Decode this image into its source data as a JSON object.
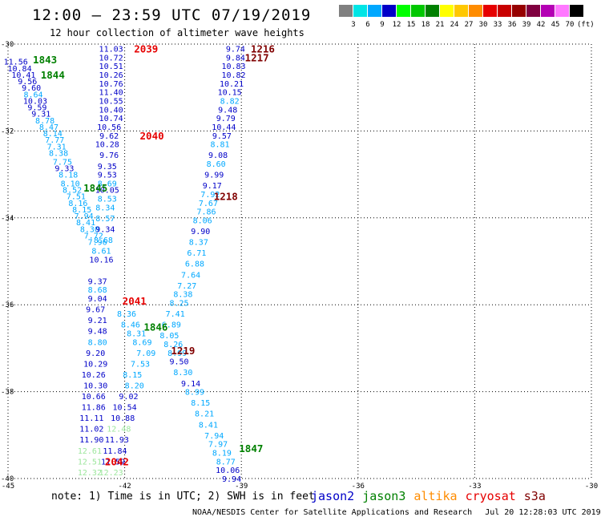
{
  "title": "12:00 – 23:59 UTC 07/19/2019",
  "subtitle": "12 hour collection of altimeter wave heights",
  "colorbar": {
    "colors": [
      "#808080",
      "#00e5e5",
      "#00a8ff",
      "#0000c8",
      "#00ff00",
      "#00c800",
      "#008000",
      "#ffff00",
      "#ffc800",
      "#ff8c00",
      "#e60000",
      "#c80000",
      "#960000",
      "#800040",
      "#b400b4",
      "#ff78ff",
      "#000000"
    ],
    "labels": [
      "3",
      "6",
      "9",
      "12",
      "15",
      "18",
      "21",
      "24",
      "27",
      "30",
      "33",
      "36",
      "39",
      "42",
      "45",
      "70",
      "(ft)"
    ]
  },
  "axes": {
    "lon_ticks": [
      "-45",
      "-42",
      "-39",
      "-36",
      "-33",
      "-30"
    ],
    "lat_ticks": [
      "-30",
      "-32",
      "-34",
      "-36",
      "-38",
      "-40"
    ]
  },
  "mission_colors": {
    "jason2": "#0000c8",
    "jason3": "#008000",
    "altika": "#ff8c00",
    "cryosat": "#e60000",
    "s3a": "#800000"
  },
  "track_colors": [
    "#0000c8",
    "#00a8ff",
    "#9ce69c"
  ],
  "observations": [
    {
      "t": "11.56",
      "lon": -44.8,
      "lat": -30.4,
      "c": 1
    },
    {
      "t": "10.84",
      "lon": -44.7,
      "lat": -30.55,
      "c": 1
    },
    {
      "t": "10.41",
      "lon": -44.6,
      "lat": -30.7,
      "c": 1
    },
    {
      "t": "9.56",
      "lon": -44.5,
      "lat": -30.85,
      "c": 1
    },
    {
      "t": "9.60",
      "lon": -44.4,
      "lat": -31.0,
      "c": 1
    },
    {
      "t": "8.64",
      "lon": -44.35,
      "lat": -31.15,
      "c": 2
    },
    {
      "t": "10.03",
      "lon": -44.3,
      "lat": -31.3,
      "c": 1
    },
    {
      "t": "9.59",
      "lon": -44.25,
      "lat": -31.45,
      "c": 1
    },
    {
      "t": "9.31",
      "lon": -44.15,
      "lat": -31.6,
      "c": 1
    },
    {
      "t": "8.78",
      "lon": -44.05,
      "lat": -31.75,
      "c": 2
    },
    {
      "t": "8.47",
      "lon": -43.95,
      "lat": -31.9,
      "c": 2
    },
    {
      "t": "8.14",
      "lon": -43.85,
      "lat": -32.05,
      "c": 2
    },
    {
      "t": "7.77",
      "lon": -43.8,
      "lat": -32.2,
      "c": 2
    },
    {
      "t": "7.31",
      "lon": -43.75,
      "lat": -32.35,
      "c": 2
    },
    {
      "t": "8.38",
      "lon": -43.7,
      "lat": -32.5,
      "c": 2
    },
    {
      "t": "7.75",
      "lon": -43.6,
      "lat": -32.7,
      "c": 2
    },
    {
      "t": "9.33",
      "lon": -43.55,
      "lat": -32.85,
      "c": 1
    },
    {
      "t": "8.18",
      "lon": -43.45,
      "lat": -33.0,
      "c": 2
    },
    {
      "t": "8.10",
      "lon": -43.4,
      "lat": -33.2,
      "c": 2
    },
    {
      "t": "8.52",
      "lon": -43.35,
      "lat": -33.35,
      "c": 2
    },
    {
      "t": "7.51",
      "lon": -43.25,
      "lat": -33.5,
      "c": 2
    },
    {
      "t": "8.16",
      "lon": -43.2,
      "lat": -33.65,
      "c": 2
    },
    {
      "t": "8.15",
      "lon": -43.1,
      "lat": -33.8,
      "c": 2
    },
    {
      "t": "7.94",
      "lon": -43.05,
      "lat": -33.95,
      "c": 2
    },
    {
      "t": "8.41",
      "lon": -43.0,
      "lat": -34.1,
      "c": 2
    },
    {
      "t": "8.30",
      "lon": -42.9,
      "lat": -34.25,
      "c": 2
    },
    {
      "t": "7.72",
      "lon": -42.8,
      "lat": -34.4,
      "c": 2
    },
    {
      "t": "7.96",
      "lon": -42.7,
      "lat": -34.55,
      "c": 2
    },
    {
      "t": "11.03",
      "lon": -42.35,
      "lat": -30.1,
      "c": 1
    },
    {
      "t": "10.72",
      "lon": -42.35,
      "lat": -30.3,
      "c": 1
    },
    {
      "t": "10.51",
      "lon": -42.35,
      "lat": -30.5,
      "c": 1
    },
    {
      "t": "10.26",
      "lon": -42.35,
      "lat": -30.7,
      "c": 1
    },
    {
      "t": "10.76",
      "lon": -42.35,
      "lat": -30.9,
      "c": 1
    },
    {
      "t": "11.40",
      "lon": -42.35,
      "lat": -31.1,
      "c": 1
    },
    {
      "t": "10.55",
      "lon": -42.35,
      "lat": -31.3,
      "c": 1
    },
    {
      "t": "10.40",
      "lon": -42.35,
      "lat": -31.5,
      "c": 1
    },
    {
      "t": "10.74",
      "lon": -42.35,
      "lat": -31.7,
      "c": 1
    },
    {
      "t": "10.56",
      "lon": -42.4,
      "lat": -31.9,
      "c": 1
    },
    {
      "t": "9.62",
      "lon": -42.4,
      "lat": -32.1,
      "c": 1
    },
    {
      "t": "10.28",
      "lon": -42.45,
      "lat": -32.3,
      "c": 1
    },
    {
      "t": "9.76",
      "lon": -42.4,
      "lat": -32.55,
      "c": 1
    },
    {
      "t": "9.35",
      "lon": -42.45,
      "lat": -32.8,
      "c": 1
    },
    {
      "t": "9.53",
      "lon": -42.45,
      "lat": -33.0,
      "c": 1
    },
    {
      "t": "8.69",
      "lon": -42.45,
      "lat": -33.2,
      "c": 2
    },
    {
      "t": "10.05",
      "lon": -42.45,
      "lat": -33.35,
      "c": 1
    },
    {
      "t": "8.53",
      "lon": -42.45,
      "lat": -33.55,
      "c": 2
    },
    {
      "t": "8.34",
      "lon": -42.5,
      "lat": -33.75,
      "c": 2
    },
    {
      "t": "8.57",
      "lon": -42.5,
      "lat": -34.0,
      "c": 2
    },
    {
      "t": "9.34",
      "lon": -42.5,
      "lat": -34.25,
      "c": 1
    },
    {
      "t": "8.68",
      "lon": -42.55,
      "lat": -34.5,
      "c": 2
    },
    {
      "t": "8.61",
      "lon": -42.6,
      "lat": -34.75,
      "c": 2
    },
    {
      "t": "10.16",
      "lon": -42.6,
      "lat": -34.95,
      "c": 1
    },
    {
      "t": "9.37",
      "lon": -42.7,
      "lat": -35.45,
      "c": 1
    },
    {
      "t": "8.68",
      "lon": -42.7,
      "lat": -35.65,
      "c": 2
    },
    {
      "t": "9.04",
      "lon": -42.7,
      "lat": -35.85,
      "c": 1
    },
    {
      "t": "9.67",
      "lon": -42.75,
      "lat": -36.1,
      "c": 1
    },
    {
      "t": "9.21",
      "lon": -42.7,
      "lat": -36.35,
      "c": 1
    },
    {
      "t": "9.48",
      "lon": -42.7,
      "lat": -36.6,
      "c": 1
    },
    {
      "t": "8.80",
      "lon": -42.7,
      "lat": -36.85,
      "c": 2
    },
    {
      "t": "9.20",
      "lon": -42.75,
      "lat": -37.1,
      "c": 1
    },
    {
      "t": "10.29",
      "lon": -42.75,
      "lat": -37.35,
      "c": 1
    },
    {
      "t": "10.26",
      "lon": -42.8,
      "lat": -37.6,
      "c": 1
    },
    {
      "t": "10.30",
      "lon": -42.75,
      "lat": -37.85,
      "c": 1
    },
    {
      "t": "10.66",
      "lon": -42.8,
      "lat": -38.1,
      "c": 1
    },
    {
      "t": "11.86",
      "lon": -42.8,
      "lat": -38.35,
      "c": 1
    },
    {
      "t": "11.11",
      "lon": -42.85,
      "lat": -38.6,
      "c": 1
    },
    {
      "t": "11.02",
      "lon": -42.85,
      "lat": -38.85,
      "c": 1
    },
    {
      "t": "11.90",
      "lon": -42.85,
      "lat": -39.1,
      "c": 1
    },
    {
      "t": "12.61",
      "lon": -42.9,
      "lat": -39.35,
      "c": 3
    },
    {
      "t": "12.51",
      "lon": -42.9,
      "lat": -39.6,
      "c": 3
    },
    {
      "t": "12.32",
      "lon": -42.9,
      "lat": -39.85,
      "c": 3
    },
    {
      "t": "9.74",
      "lon": -39.15,
      "lat": -30.1,
      "c": 1
    },
    {
      "t": "9.84",
      "lon": -39.15,
      "lat": -30.3,
      "c": 1
    },
    {
      "t": "10.83",
      "lon": -39.2,
      "lat": -30.5,
      "c": 1
    },
    {
      "t": "10.82",
      "lon": -39.2,
      "lat": -30.7,
      "c": 1
    },
    {
      "t": "10.21",
      "lon": -39.25,
      "lat": -30.9,
      "c": 1
    },
    {
      "t": "10.15",
      "lon": -39.3,
      "lat": -31.1,
      "c": 1
    },
    {
      "t": "8.82",
      "lon": -39.3,
      "lat": -31.3,
      "c": 2
    },
    {
      "t": "9.48",
      "lon": -39.35,
      "lat": -31.5,
      "c": 1
    },
    {
      "t": "9.79",
      "lon": -39.4,
      "lat": -31.7,
      "c": 1
    },
    {
      "t": "10.44",
      "lon": -39.45,
      "lat": -31.9,
      "c": 1
    },
    {
      "t": "9.57",
      "lon": -39.5,
      "lat": -32.1,
      "c": 1
    },
    {
      "t": "8.81",
      "lon": -39.55,
      "lat": -32.3,
      "c": 2
    },
    {
      "t": "9.08",
      "lon": -39.6,
      "lat": -32.55,
      "c": 1
    },
    {
      "t": "8.60",
      "lon": -39.65,
      "lat": -32.75,
      "c": 2
    },
    {
      "t": "9.99",
      "lon": -39.7,
      "lat": -33.0,
      "c": 1
    },
    {
      "t": "9.17",
      "lon": -39.75,
      "lat": -33.25,
      "c": 1
    },
    {
      "t": "7.92",
      "lon": -39.8,
      "lat": -33.45,
      "c": 2
    },
    {
      "t": "7.67",
      "lon": -39.85,
      "lat": -33.65,
      "c": 2
    },
    {
      "t": "7.86",
      "lon": -39.9,
      "lat": -33.85,
      "c": 2
    },
    {
      "t": "8.06",
      "lon": -40.0,
      "lat": -34.05,
      "c": 2
    },
    {
      "t": "9.90",
      "lon": -40.05,
      "lat": -34.3,
      "c": 1
    },
    {
      "t": "8.37",
      "lon": -40.1,
      "lat": -34.55,
      "c": 2
    },
    {
      "t": "6.71",
      "lon": -40.15,
      "lat": -34.8,
      "c": 2
    },
    {
      "t": "6.88",
      "lon": -40.2,
      "lat": -35.05,
      "c": 2
    },
    {
      "t": "7.64",
      "lon": -40.3,
      "lat": -35.3,
      "c": 2
    },
    {
      "t": "7.27",
      "lon": -40.4,
      "lat": -35.55,
      "c": 2
    },
    {
      "t": "8.38",
      "lon": -40.5,
      "lat": -35.75,
      "c": 2
    },
    {
      "t": "8.25",
      "lon": -40.6,
      "lat": -35.95,
      "c": 2
    },
    {
      "t": "7.41",
      "lon": -40.7,
      "lat": -36.2,
      "c": 2
    },
    {
      "t": "6.89",
      "lon": -40.8,
      "lat": -36.45,
      "c": 2
    },
    {
      "t": "8.05",
      "lon": -40.85,
      "lat": -36.7,
      "c": 2
    },
    {
      "t": "8.26",
      "lon": -40.75,
      "lat": -36.9,
      "c": 2
    },
    {
      "t": "8.99",
      "lon": -40.65,
      "lat": -37.1,
      "c": 2
    },
    {
      "t": "9.50",
      "lon": -40.6,
      "lat": -37.3,
      "c": 1
    },
    {
      "t": "8.30",
      "lon": -40.5,
      "lat": -37.55,
      "c": 2
    },
    {
      "t": "9.14",
      "lon": -40.3,
      "lat": -37.8,
      "c": 1
    },
    {
      "t": "8.99",
      "lon": -40.2,
      "lat": -38.0,
      "c": 2
    },
    {
      "t": "8.15",
      "lon": -40.05,
      "lat": -38.25,
      "c": 2
    },
    {
      "t": "8.21",
      "lon": -39.95,
      "lat": -38.5,
      "c": 2
    },
    {
      "t": "8.41",
      "lon": -39.85,
      "lat": -38.75,
      "c": 2
    },
    {
      "t": "7.94",
      "lon": -39.7,
      "lat": -39.0,
      "c": 2
    },
    {
      "t": "7.97",
      "lon": -39.6,
      "lat": -39.2,
      "c": 2
    },
    {
      "t": "8.19",
      "lon": -39.5,
      "lat": -39.4,
      "c": 2
    },
    {
      "t": "8.77",
      "lon": -39.4,
      "lat": -39.6,
      "c": 2
    },
    {
      "t": "10.06",
      "lon": -39.35,
      "lat": -39.8,
      "c": 1
    },
    {
      "t": "9.94",
      "lon": -39.25,
      "lat": -40.0,
      "c": 1
    },
    {
      "t": "8.36",
      "lon": -41.95,
      "lat": -36.2,
      "c": 2
    },
    {
      "t": "8.46",
      "lon": -41.85,
      "lat": -36.45,
      "c": 2
    },
    {
      "t": "8.31",
      "lon": -41.7,
      "lat": -36.65,
      "c": 2
    },
    {
      "t": "8.69",
      "lon": -41.55,
      "lat": -36.85,
      "c": 2
    },
    {
      "t": "7.09",
      "lon": -41.45,
      "lat": -37.1,
      "c": 2
    },
    {
      "t": "7.53",
      "lon": -41.6,
      "lat": -37.35,
      "c": 2
    },
    {
      "t": "8.15",
      "lon": -41.8,
      "lat": -37.6,
      "c": 2
    },
    {
      "t": "8.20",
      "lon": -41.75,
      "lat": -37.85,
      "c": 2
    },
    {
      "t": "9.02",
      "lon": -41.9,
      "lat": -38.1,
      "c": 1
    },
    {
      "t": "10.54",
      "lon": -42.0,
      "lat": -38.35,
      "c": 1
    },
    {
      "t": "10.88",
      "lon": -42.05,
      "lat": -38.6,
      "c": 1
    },
    {
      "t": "12.48",
      "lon": -42.15,
      "lat": -38.85,
      "c": 3
    },
    {
      "t": "11.93",
      "lon": -42.2,
      "lat": -39.1,
      "c": 1
    },
    {
      "t": "11.84",
      "lon": -42.25,
      "lat": -39.35,
      "c": 1
    },
    {
      "t": "11.59",
      "lon": -42.3,
      "lat": -39.6,
      "c": 1
    },
    {
      "t": "12.23",
      "lon": -42.35,
      "lat": -39.85,
      "c": 3
    }
  ],
  "pass_labels": [
    {
      "t": "1843",
      "lon": -44.05,
      "lat": -30.35,
      "mission": "jason3"
    },
    {
      "t": "1844",
      "lon": -43.85,
      "lat": -30.7,
      "mission": "jason3"
    },
    {
      "t": "1845",
      "lon": -42.75,
      "lat": -33.3,
      "mission": "jason3"
    },
    {
      "t": "1846",
      "lon": -41.2,
      "lat": -36.5,
      "mission": "jason3"
    },
    {
      "t": "1847",
      "lon": -38.75,
      "lat": -39.3,
      "mission": "jason3"
    },
    {
      "t": "2039",
      "lon": -41.45,
      "lat": -30.1,
      "mission": "cryosat"
    },
    {
      "t": "2040",
      "lon": -41.3,
      "lat": -32.1,
      "mission": "cryosat"
    },
    {
      "t": "2041",
      "lon": -41.75,
      "lat": -35.9,
      "mission": "cryosat"
    },
    {
      "t": "2042",
      "lon": -42.2,
      "lat": -39.6,
      "mission": "cryosat"
    },
    {
      "t": "1216",
      "lon": -38.45,
      "lat": -30.1,
      "mission": "s3a"
    },
    {
      "t": "1217",
      "lon": -38.6,
      "lat": -30.3,
      "mission": "s3a"
    },
    {
      "t": "1218",
      "lon": -39.4,
      "lat": -33.5,
      "mission": "s3a"
    },
    {
      "t": "1219",
      "lon": -40.5,
      "lat": -37.05,
      "mission": "s3a"
    }
  ],
  "note": "note: 1) Time is in UTC; 2) SWH is in feet",
  "legend": [
    {
      "name": "jason2",
      "color": "#0000c8"
    },
    {
      "name": "jason3",
      "color": "#008000"
    },
    {
      "name": "altika",
      "color": "#ff8c00"
    },
    {
      "name": "cryosat",
      "color": "#e60000"
    },
    {
      "name": "s3a",
      "color": "#800000"
    }
  ],
  "credit": "NOAA/NESDIS Center for Satellite Applications and Research",
  "timestamp": "Jul 20 12:28:03 UTC 2019"
}
